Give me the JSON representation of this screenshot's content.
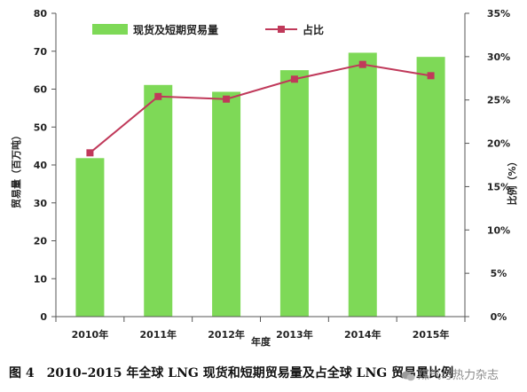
{
  "chart_data": {
    "type": "bar",
    "categories": [
      "2010年",
      "2011年",
      "2012年",
      "2013年",
      "2014年",
      "2015年"
    ],
    "series": [
      {
        "name": "现货及短期贸易量",
        "type": "bar",
        "axis": "left",
        "color": "#7ed957",
        "values": [
          41.8,
          61.1,
          59.3,
          65.0,
          69.6,
          68.5
        ]
      },
      {
        "name": "占比",
        "type": "line",
        "axis": "right",
        "color": "#c0395a",
        "values": [
          18.9,
          25.4,
          25.1,
          27.4,
          29.1,
          27.8
        ]
      }
    ],
    "xlabel": "年度",
    "ylabel": "贸易量（百万吨）",
    "y2label": "比例（%）",
    "ylim": [
      0,
      80
    ],
    "y2lim": [
      0,
      35
    ],
    "yticks": [
      "0",
      "10",
      "20",
      "30",
      "40",
      "50",
      "60",
      "70",
      "80"
    ],
    "y2ticks": [
      "0%",
      "5%",
      "10%",
      "15%",
      "20%",
      "25%",
      "30%",
      "35%"
    ],
    "grid": false,
    "legend": "top"
  },
  "caption": "图 4　2010–2015 年全球 LNG 现货和短期贸易量及占全球 LNG 贸易量比例",
  "watermark": "煤气与热力杂志"
}
